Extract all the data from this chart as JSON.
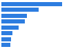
{
  "values": [
    593,
    367,
    248,
    230,
    168,
    110,
    95,
    88
  ],
  "bar_color": "#2d7de0",
  "background_color": "#ffffff",
  "grid_color": "#e8e8e8",
  "xlim": [
    0,
    650
  ],
  "figsize": [
    1.0,
    0.71
  ],
  "dpi": 100
}
